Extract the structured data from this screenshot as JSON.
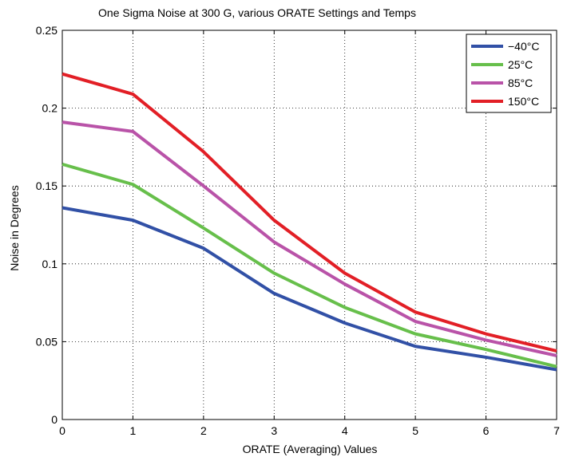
{
  "chart_data": {
    "type": "line",
    "title": "One Sigma Noise at 300 G, various ORATE Settings and Temps",
    "xlabel": "ORATE (Averaging) Values",
    "ylabel": "Noise in Degrees",
    "x": [
      0,
      1,
      2,
      3,
      4,
      5,
      6,
      7
    ],
    "xlim": [
      0,
      7
    ],
    "ylim": [
      0,
      0.25
    ],
    "xticks": [
      "0",
      "1",
      "2",
      "3",
      "4",
      "5",
      "6",
      "7"
    ],
    "yticks": [
      "0",
      "0.05",
      "0.1",
      "0.15",
      "0.2",
      "0.25"
    ],
    "grid": true,
    "legend_position": "top-right",
    "series": [
      {
        "name": "−40°C",
        "color": "#3150a6",
        "values": [
          0.136,
          0.128,
          0.11,
          0.081,
          0.062,
          0.047,
          0.04,
          0.032
        ]
      },
      {
        "name": "25°C",
        "color": "#67bf4b",
        "values": [
          0.164,
          0.151,
          0.123,
          0.094,
          0.072,
          0.055,
          0.045,
          0.034
        ]
      },
      {
        "name": "85°C",
        "color": "#b953a8",
        "values": [
          0.191,
          0.185,
          0.15,
          0.114,
          0.087,
          0.063,
          0.051,
          0.041
        ]
      },
      {
        "name": "150°C",
        "color": "#e21f26",
        "values": [
          0.222,
          0.209,
          0.172,
          0.128,
          0.094,
          0.069,
          0.055,
          0.044
        ]
      }
    ]
  }
}
